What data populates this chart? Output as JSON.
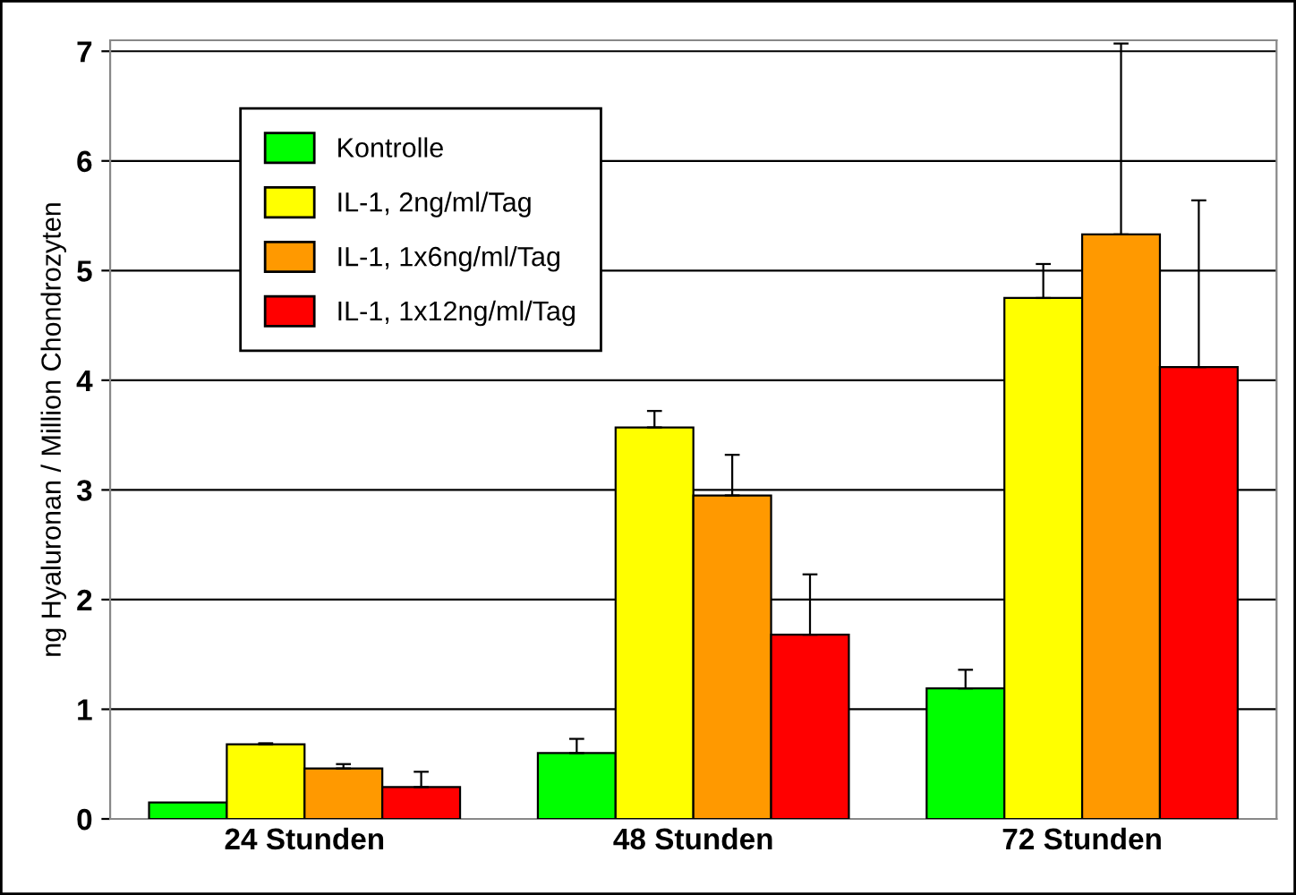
{
  "chart_data": {
    "type": "bar",
    "ylabel": "ng Hyaluronan / Million Chondrozyten",
    "categories": [
      "24 Stunden",
      "48 Stunden",
      "72 Stunden"
    ],
    "series": [
      {
        "name": "Kontrolle",
        "color": "#00ff00",
        "values": [
          0.15,
          0.6,
          1.19
        ],
        "errors": [
          null,
          [
            0.6,
            0.73
          ],
          [
            1.19,
            1.36
          ]
        ]
      },
      {
        "name": "IL-1, 2ng/ml/Tag",
        "color": "#ffff00",
        "values": [
          0.68,
          3.57,
          4.75
        ],
        "errors": [
          [
            0.68,
            0.69
          ],
          [
            3.57,
            3.72
          ],
          [
            4.75,
            5.06
          ]
        ]
      },
      {
        "name": "IL-1, 1x6ng/ml/Tag",
        "color": "#ff9900",
        "values": [
          0.46,
          2.95,
          5.33
        ],
        "errors": [
          [
            0.46,
            0.5
          ],
          [
            2.95,
            3.32
          ],
          [
            5.33,
            7.07
          ]
        ]
      },
      {
        "name": "IL-1, 1x12ng/ml/Tag",
        "color": "#ff0000",
        "values": [
          0.29,
          1.68,
          4.12
        ],
        "errors": [
          [
            0.29,
            0.43
          ],
          [
            1.68,
            2.23
          ],
          [
            4.12,
            5.64
          ]
        ]
      }
    ],
    "ylim": [
      0,
      7.1
    ],
    "yticks": [
      0,
      1,
      2,
      3,
      4,
      5,
      6,
      7
    ],
    "grid": "y",
    "legend": "top left"
  }
}
